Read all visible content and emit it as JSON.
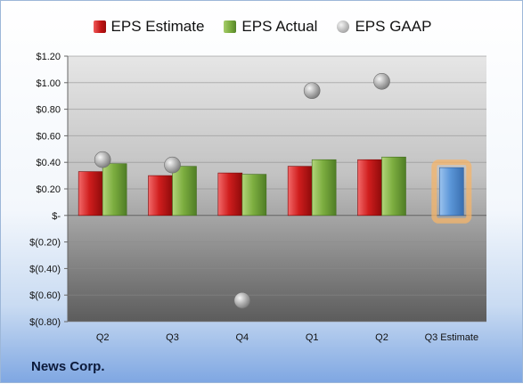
{
  "legend": {
    "estimate": "EPS Estimate",
    "actual": "EPS Actual",
    "gaap": "EPS GAAP"
  },
  "footer": "News Corp.",
  "colors": {
    "estimate": "#c81a1a",
    "actual": "#78a83c",
    "gaap": "#a9a9a9",
    "future_estimate": "#5b9bd5",
    "highlight": "#f4b46a"
  },
  "chart_data": {
    "type": "bar",
    "categories": [
      "Q2",
      "Q3",
      "Q4",
      "Q1",
      "Q2",
      "Q3 Estimate"
    ],
    "series": [
      {
        "name": "EPS Estimate",
        "values": [
          0.33,
          0.3,
          0.32,
          0.37,
          0.42,
          0.36
        ]
      },
      {
        "name": "EPS Actual",
        "values": [
          0.39,
          0.37,
          0.31,
          0.42,
          0.44,
          null
        ]
      },
      {
        "name": "EPS GAAP",
        "values": [
          0.42,
          0.38,
          -0.64,
          0.94,
          1.01,
          null
        ]
      }
    ],
    "ylim": [
      -0.8,
      1.2
    ],
    "yticks": [
      1.2,
      1.0,
      0.8,
      0.6,
      0.4,
      0.2,
      0,
      -0.2,
      -0.4,
      -0.6,
      -0.8
    ],
    "ytick_labels": [
      "$1.20",
      "$1.00",
      "$0.80",
      "$0.60",
      "$0.40",
      "$0.20",
      "$-",
      "$(0.20)",
      "$(0.40)",
      "$(0.60)",
      "$(0.80)"
    ],
    "title": "",
    "xlabel": "",
    "ylabel": "",
    "legend_position": "top",
    "grid": true,
    "highlighted_category": "Q3 Estimate"
  }
}
